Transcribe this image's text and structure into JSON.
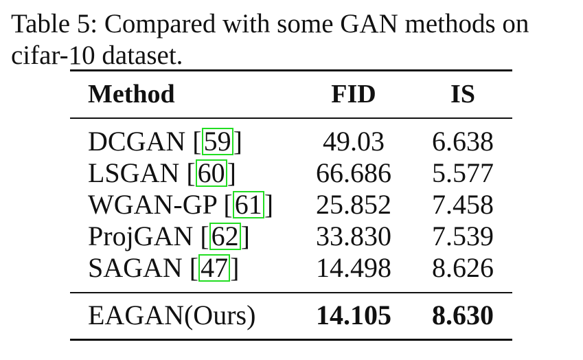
{
  "caption": {
    "line1": "Table 5: Compared with some GAN methods on",
    "line2": "cifar-10 dataset."
  },
  "table": {
    "headers": {
      "method": "Method",
      "fid": "FID",
      "is": "IS"
    },
    "rows": [
      {
        "method": "DCGAN",
        "cite": "59",
        "fid": "49.03",
        "is": "6.638"
      },
      {
        "method": "LSGAN",
        "cite": "60",
        "fid": "66.686",
        "is": "5.577"
      },
      {
        "method": "WGAN-GP",
        "cite": "61",
        "fid": "25.852",
        "is": "7.458"
      },
      {
        "method": "ProjGAN",
        "cite": "62",
        "fid": "33.830",
        "is": "7.539"
      },
      {
        "method": "SAGAN",
        "cite": "47",
        "fid": "14.498",
        "is": "8.626"
      }
    ],
    "ours": {
      "method": "EAGAN(Ours)",
      "fid": "14.105",
      "is": "8.630"
    }
  },
  "colors": {
    "citation_box": "#22dd22",
    "text": "#111111"
  }
}
